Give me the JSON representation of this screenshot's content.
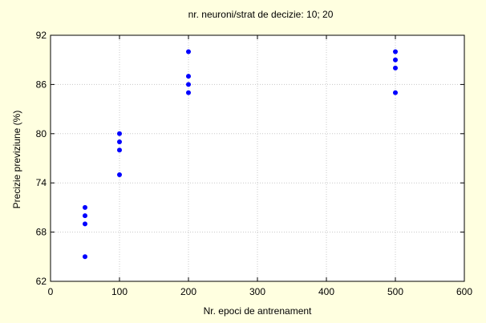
{
  "chart_data": {
    "type": "scatter",
    "title": "nr. neuroni/strat de decizie: 10; 20",
    "xlabel": "Nr. epoci de antrenament",
    "ylabel": "Precizie previziune (%)",
    "xlim": [
      0,
      600
    ],
    "ylim": [
      62,
      92
    ],
    "xticks": [
      0,
      100,
      200,
      300,
      400,
      500,
      600
    ],
    "yticks": [
      62,
      68,
      74,
      80,
      86,
      92
    ],
    "grid": true,
    "legend": "none",
    "colors": {
      "background": "#ffffe0",
      "plot_area": "#ffffff",
      "marker": "#0000ff",
      "grid": "#c8c8c8"
    },
    "points": [
      {
        "x": 50,
        "y": 71
      },
      {
        "x": 50,
        "y": 70
      },
      {
        "x": 50,
        "y": 69
      },
      {
        "x": 50,
        "y": 65
      },
      {
        "x": 100,
        "y": 80
      },
      {
        "x": 100,
        "y": 79
      },
      {
        "x": 100,
        "y": 78
      },
      {
        "x": 100,
        "y": 75
      },
      {
        "x": 200,
        "y": 90
      },
      {
        "x": 200,
        "y": 87
      },
      {
        "x": 200,
        "y": 86
      },
      {
        "x": 200,
        "y": 85
      },
      {
        "x": 500,
        "y": 90
      },
      {
        "x": 500,
        "y": 89
      },
      {
        "x": 500,
        "y": 88
      },
      {
        "x": 500,
        "y": 85
      }
    ]
  }
}
